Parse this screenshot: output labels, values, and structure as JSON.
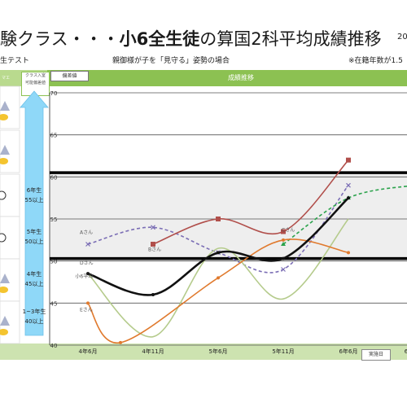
{
  "title": {
    "part1": "験クラス・・・",
    "part2": "小6全生徒",
    "part3": "の算国2科平均成績推移"
  },
  "corner_text": "20",
  "subtitle": {
    "left": "生テスト",
    "center": "親御様が子を「見守る」姿勢の場合",
    "right": "※在籍年数が1.5"
  },
  "header": {
    "chip_trend": "偏差値",
    "chart_title": "成績推移",
    "chip_class": "クラス入室\n可能偏差値",
    "chip_top_left": "マエ"
  },
  "footer": {
    "exam_chip": "実施日"
  },
  "colors": {
    "header_band": "#8cc152",
    "light_band": "#b9da8e",
    "footer_band": "#cde3b0",
    "arrow": "#8fd8f8"
  },
  "thresholds": [
    {
      "grade": "6年生",
      "value": "55以上"
    },
    {
      "grade": "5年生",
      "value": "50以上"
    },
    {
      "grade": "4年生",
      "value": "45以上"
    },
    {
      "grade": "1~3年生",
      "value": "40以上"
    }
  ],
  "chart_data": {
    "type": "line",
    "title": "成績推移",
    "ylabel": "偏差値",
    "ylim": [
      40,
      70
    ],
    "yticks": [
      40,
      45,
      50,
      55,
      60,
      65,
      70
    ],
    "categories": [
      "4年6月",
      "4年11月",
      "5年6月",
      "5年11月",
      "6年6月"
    ],
    "cat_x": [
      0,
      1,
      2,
      3,
      4,
      5
    ],
    "xlim": [
      -0.25,
      5.1
    ],
    "grid": true,
    "bold_lines": [
      60.5,
      50.3
    ],
    "shaded_band": [
      50.3,
      60.5
    ],
    "series": [
      {
        "name": "Aさん",
        "label_pos": [
          -0.15,
          53.2
        ],
        "color": "#7b6eb5",
        "style": "dashed",
        "marker": "x",
        "points": [
          [
            0,
            52
          ],
          [
            1,
            54
          ],
          [
            2,
            51
          ],
          [
            3,
            49
          ],
          [
            4,
            59
          ]
        ]
      },
      {
        "name": "Bさん",
        "label_pos": [
          0.9,
          51.2
        ],
        "color": "#b14f4b",
        "style": "solid",
        "marker": "square",
        "points": [
          [
            1,
            52
          ],
          [
            2,
            55
          ],
          [
            3,
            53.5
          ],
          [
            4,
            62
          ]
        ]
      },
      {
        "name": "Cさん",
        "label_pos": [
          2.95,
          53.5
        ],
        "color": "#2aa24b",
        "style": "dashed",
        "marker": "triangle",
        "points": [
          [
            3,
            52
          ],
          [
            4,
            57.5
          ],
          [
            5,
            59
          ]
        ]
      },
      {
        "name": "Dさん",
        "label_pos": [
          -0.15,
          49.6
        ],
        "color": "#b5cb8c",
        "style": "solid",
        "marker": "none",
        "points": [
          [
            0,
            48.5
          ],
          [
            1,
            41
          ],
          [
            2,
            51.5
          ],
          [
            3,
            45.5
          ],
          [
            4,
            55
          ]
        ]
      },
      {
        "name": "Eさん",
        "label_pos": [
          -0.15,
          44
        ],
        "color": "#e07a2e",
        "style": "solid",
        "marker": "dot",
        "points": [
          [
            0,
            45
          ],
          [
            0.5,
            40.3
          ],
          [
            2,
            48
          ],
          [
            3,
            52.5
          ],
          [
            4,
            51
          ]
        ]
      },
      {
        "name": "小6平均",
        "label_pos": [
          -0.22,
          48
        ],
        "color": "#111111",
        "style": "solid",
        "marker": "dot",
        "bold": true,
        "points": [
          [
            0,
            48.5
          ],
          [
            1,
            46
          ],
          [
            2,
            51
          ],
          [
            3,
            50.3
          ],
          [
            4,
            57.5
          ]
        ]
      }
    ],
    "extra_tick": "6"
  }
}
